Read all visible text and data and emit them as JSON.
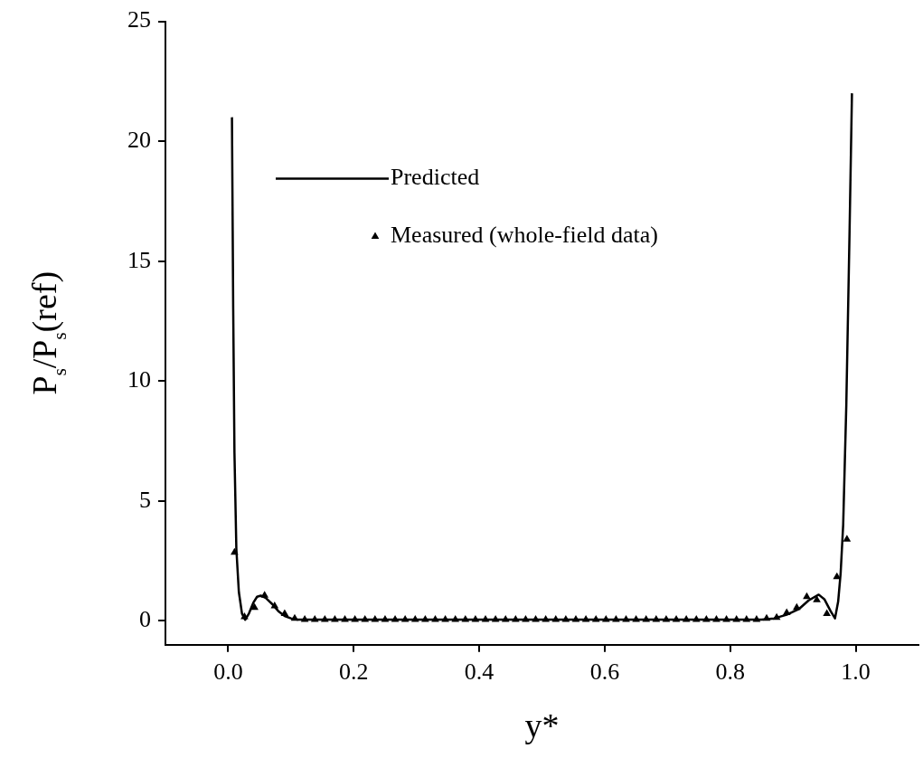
{
  "chart_data": {
    "type": "line",
    "xlabel": "y*",
    "ylabel": "P$_{s}$/P$_{s}$(ref)",
    "xlim": [
      -0.1,
      1.1
    ],
    "ylim": [
      -1,
      25
    ],
    "xticks": [
      {
        "value": 0,
        "label": "0.0"
      },
      {
        "value": 0.2,
        "label": "0.2"
      },
      {
        "value": 0.4,
        "label": "0.4"
      },
      {
        "value": 0.6,
        "label": "0.6"
      },
      {
        "value": 0.8,
        "label": "0.8"
      },
      {
        "value": 1,
        "label": "1.0"
      }
    ],
    "yticks": [
      0,
      5,
      10,
      15,
      20,
      25
    ],
    "grid": false,
    "legend": "top left",
    "series": [
      {
        "name": "Predicted",
        "color": "#000000",
        "marker": "none",
        "line_style": "solid",
        "x": [
          0.006,
          0.008,
          0.01,
          0.013,
          0.017,
          0.022,
          0.027,
          0.033,
          0.04,
          0.046,
          0.052,
          0.06,
          0.07,
          0.08,
          0.09,
          0.1,
          0.11,
          0.12,
          0.3,
          0.5,
          0.7,
          0.85,
          0.87,
          0.89,
          0.91,
          0.925,
          0.941,
          0.95,
          0.96,
          0.967,
          0.972,
          0.976,
          0.98,
          0.985,
          0.99,
          0.994
        ],
        "values": [
          21,
          13,
          7,
          3,
          1.2,
          0.3,
          0.04,
          0.3,
          0.75,
          1.0,
          1.05,
          0.95,
          0.7,
          0.4,
          0.2,
          0.1,
          0.05,
          0.05,
          0.05,
          0.05,
          0.05,
          0.05,
          0.1,
          0.25,
          0.5,
          0.85,
          1.09,
          0.9,
          0.4,
          0.1,
          0.8,
          2,
          4,
          9,
          16,
          22
        ]
      },
      {
        "name": "Measured (whole-field data)",
        "type": "scatter",
        "color": "#000000",
        "marker": "triangle",
        "x": [
          0.01,
          0.026,
          0.042,
          0.058,
          0.074,
          0.09,
          0.106,
          0.122,
          0.138,
          0.154,
          0.17,
          0.186,
          0.202,
          0.218,
          0.234,
          0.25,
          0.266,
          0.282,
          0.298,
          0.314,
          0.33,
          0.346,
          0.362,
          0.378,
          0.394,
          0.41,
          0.426,
          0.442,
          0.458,
          0.474,
          0.49,
          0.506,
          0.522,
          0.538,
          0.554,
          0.57,
          0.586,
          0.602,
          0.618,
          0.634,
          0.65,
          0.666,
          0.682,
          0.698,
          0.714,
          0.73,
          0.746,
          0.762,
          0.778,
          0.794,
          0.81,
          0.826,
          0.842,
          0.858,
          0.874,
          0.89,
          0.906,
          0.922,
          0.938,
          0.954,
          0.97,
          0.986
        ],
        "values": [
          2.85,
          0.16,
          0.55,
          1.06,
          0.61,
          0.29,
          0.1,
          0.05,
          0.05,
          0.05,
          0.05,
          0.05,
          0.05,
          0.05,
          0.05,
          0.05,
          0.05,
          0.05,
          0.05,
          0.05,
          0.05,
          0.05,
          0.05,
          0.05,
          0.05,
          0.05,
          0.05,
          0.05,
          0.05,
          0.05,
          0.05,
          0.05,
          0.05,
          0.05,
          0.05,
          0.05,
          0.05,
          0.05,
          0.05,
          0.05,
          0.05,
          0.05,
          0.05,
          0.05,
          0.05,
          0.05,
          0.05,
          0.05,
          0.05,
          0.05,
          0.05,
          0.05,
          0.05,
          0.1,
          0.13,
          0.33,
          0.55,
          1.0,
          0.87,
          0.29,
          1.83,
          3.4
        ]
      }
    ]
  }
}
